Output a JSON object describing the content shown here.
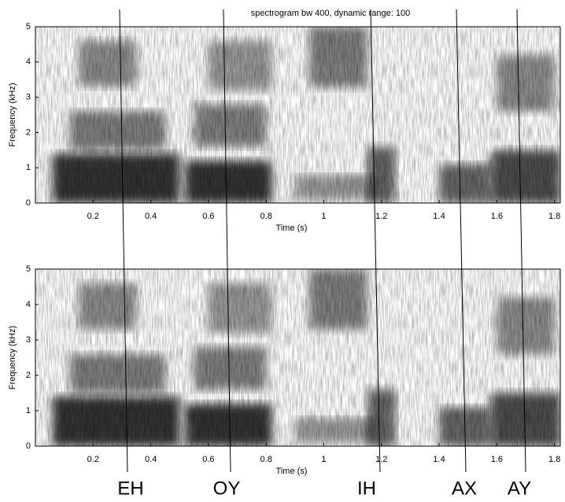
{
  "chart_data": [
    {
      "type": "spectrogram",
      "title": "spectrogram bw 400, dynamic range: 100",
      "x_label": "Time (s)",
      "y_label": "Frequency (kHz)",
      "xlim": [
        0,
        1.82
      ],
      "ylim": [
        0,
        5
      ],
      "xticks": [
        0.2,
        0.4,
        0.6,
        0.8,
        1,
        1.2,
        1.4,
        1.6,
        1.8
      ],
      "yticks": [
        0,
        1,
        2,
        3,
        4,
        5
      ]
    },
    {
      "type": "spectrogram",
      "x_label": "Time (s)",
      "y_label": "Frequency (kHz)",
      "xlim": [
        0,
        1.82
      ],
      "ylim": [
        0,
        5
      ],
      "xticks": [
        0.2,
        0.4,
        0.6,
        0.8,
        1,
        1.2,
        1.4,
        1.6,
        1.8
      ],
      "yticks": [
        0,
        1,
        2,
        3,
        4,
        5
      ]
    }
  ],
  "phonemes": [
    "EH",
    "OY",
    "IH",
    "AX",
    "AY"
  ]
}
